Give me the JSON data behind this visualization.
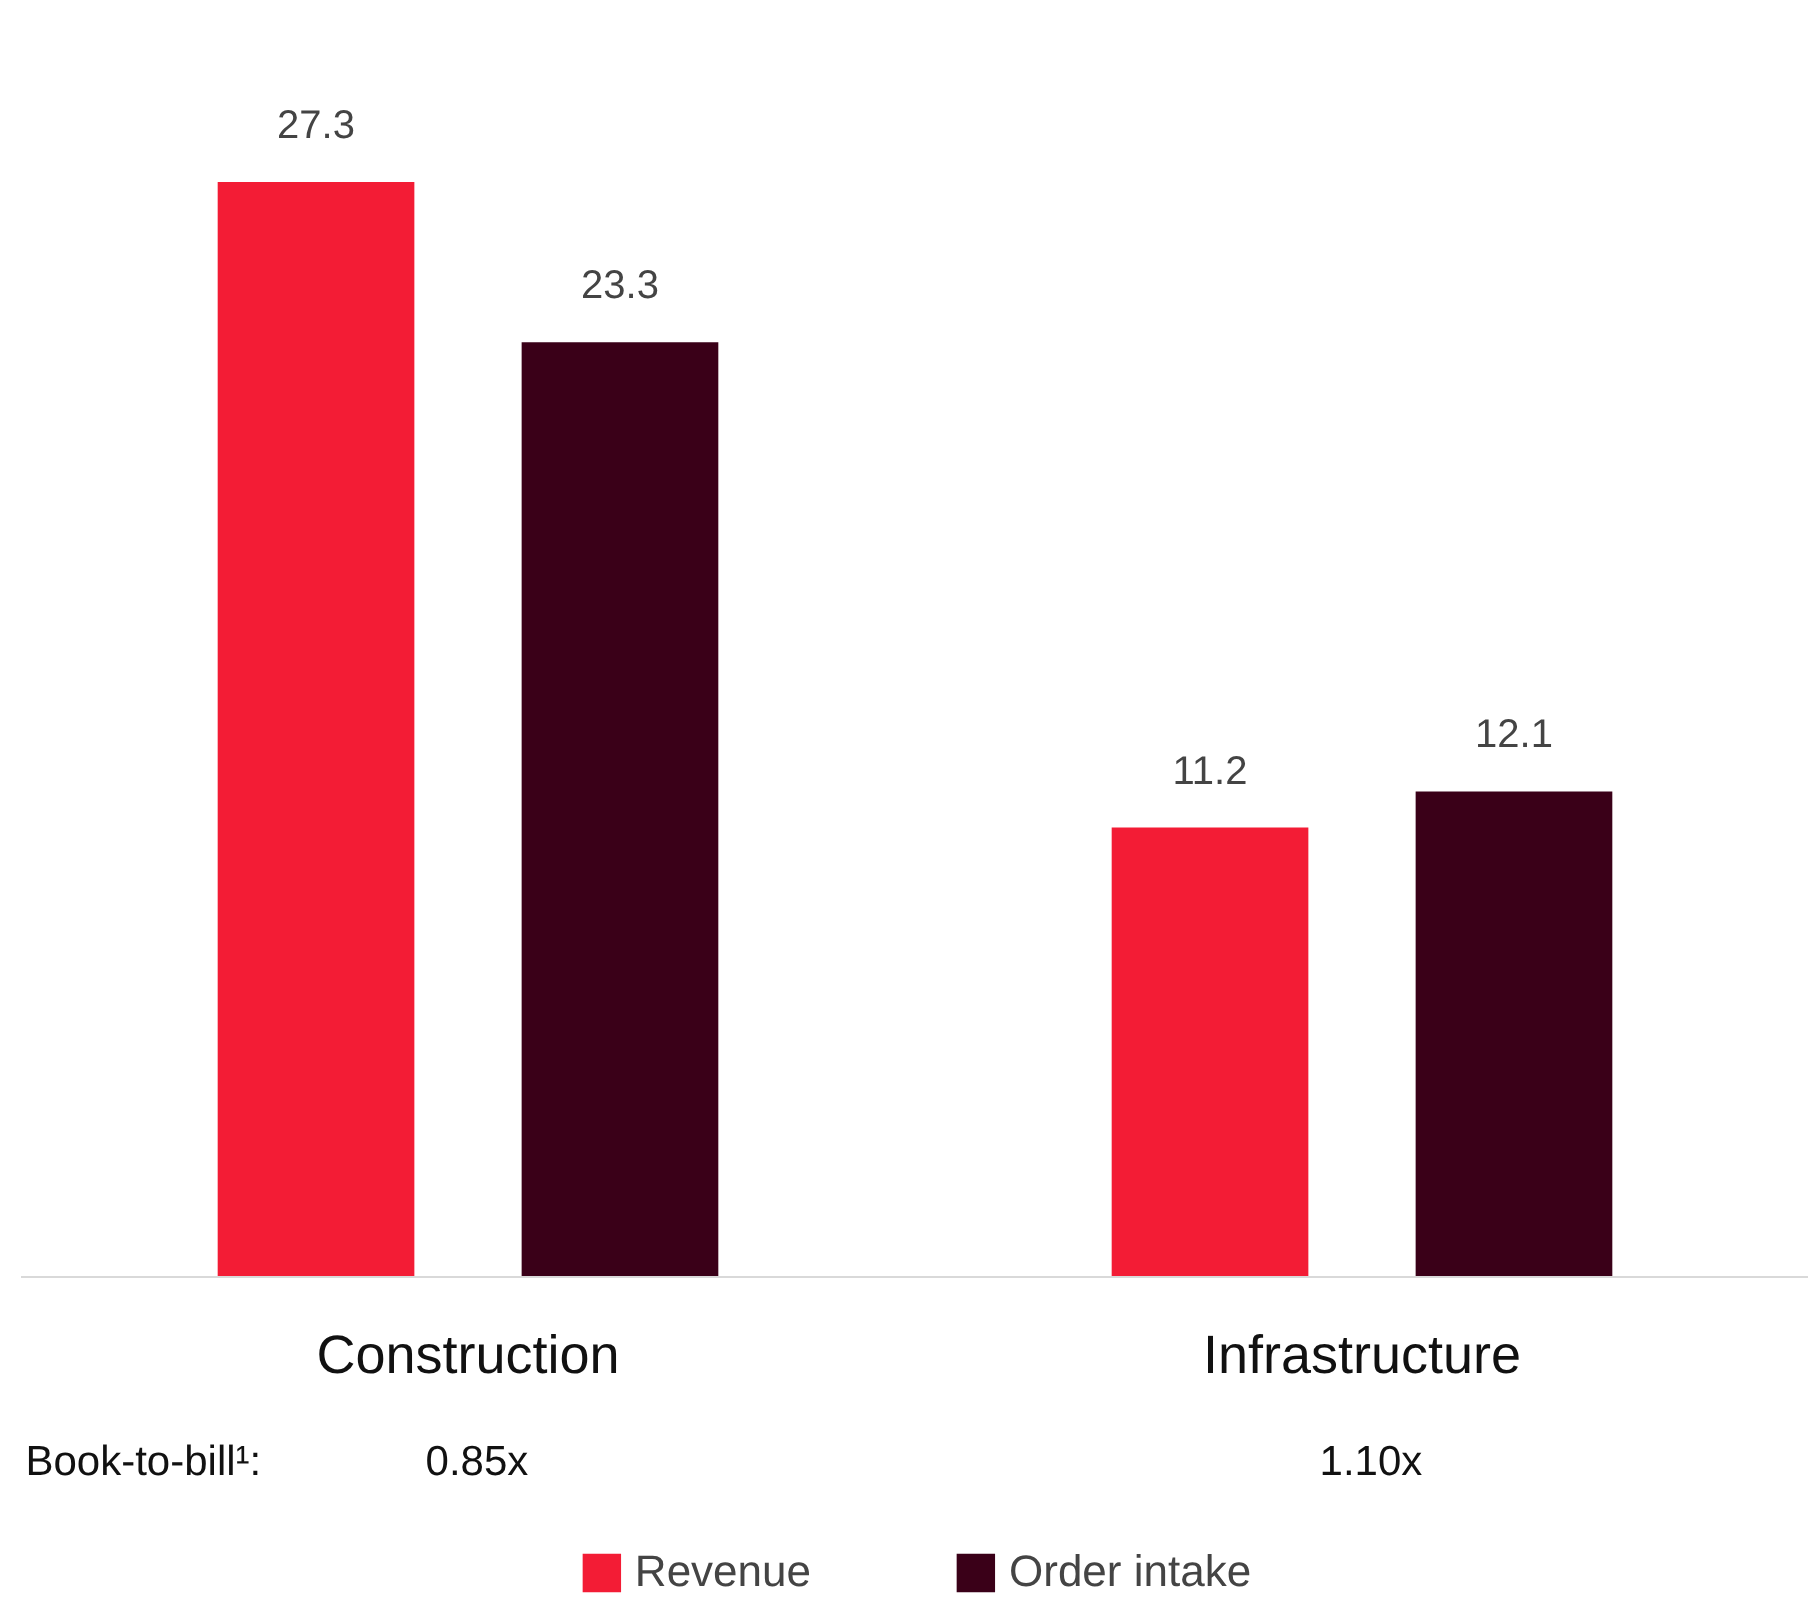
{
  "chart_data": {
    "type": "bar",
    "categories": [
      "Construction",
      "Infrastructure"
    ],
    "series": [
      {
        "name": "Revenue",
        "color": "#f31c35",
        "values": [
          27.3,
          11.2
        ]
      },
      {
        "name": "Order intake",
        "color": "#3a0018",
        "values": [
          23.3,
          12.1
        ]
      }
    ],
    "data_labels": true,
    "legend": "bottom",
    "grid": false,
    "annotations": [
      "Book-to-bill¹:",
      "0.85x",
      "1.10x"
    ]
  }
}
